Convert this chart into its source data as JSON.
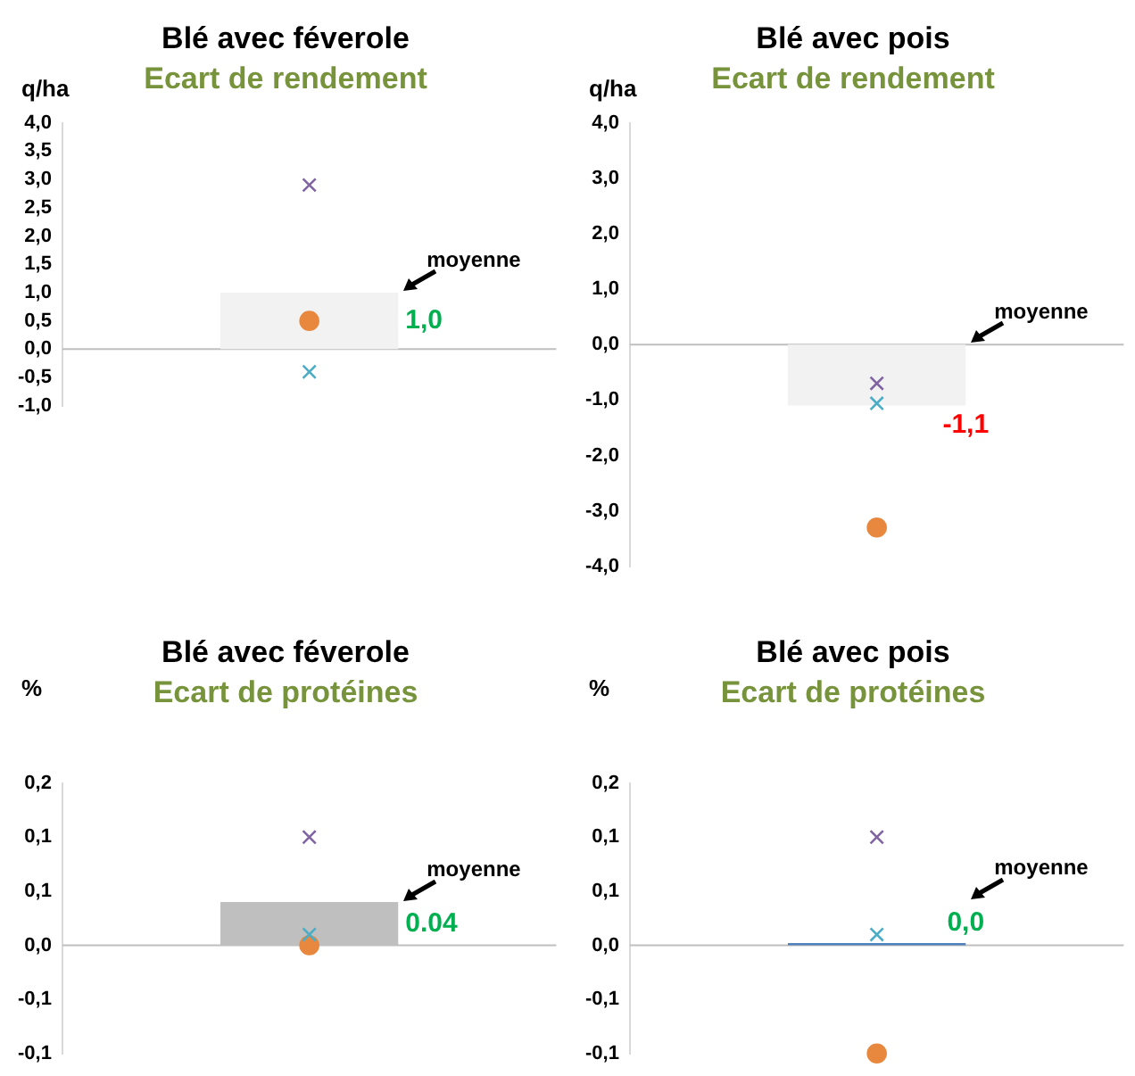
{
  "chart_data": [
    {
      "type": "bar",
      "title": "Blé avec féverole",
      "subtitle": "Ecart de rendement",
      "ylabel": "q/ha",
      "categories": [
        null
      ],
      "ylim": [
        -1,
        4
      ],
      "yticks": [
        {
          "value": -1,
          "label": "-1,0"
        },
        {
          "value": -0.5,
          "label": "-0,5"
        },
        {
          "value": 0,
          "label": "0,0"
        },
        {
          "value": 0.5,
          "label": "0,5"
        },
        {
          "value": 1,
          "label": "1,0"
        },
        {
          "value": 1.5,
          "label": "1,5"
        },
        {
          "value": 2,
          "label": "2,0"
        },
        {
          "value": 2.5,
          "label": "2,5"
        },
        {
          "value": 3,
          "label": "3,0"
        },
        {
          "value": 3.5,
          "label": "3,5"
        },
        {
          "value": 4,
          "label": "4,0"
        }
      ],
      "grid": false,
      "annotations": [
        "moyenne"
      ],
      "ref_lines": [
        {
          "axis": "y",
          "value": 0,
          "color": "#bfbfbf"
        }
      ],
      "series": [
        {
          "type": "bar",
          "color": "#f2f2f2",
          "values": [
            1.0
          ],
          "value_labels": [
            "1,0"
          ]
        },
        {
          "type": "scatter",
          "marker": "cross",
          "color": "#8064a2",
          "values": [
            2.9
          ]
        },
        {
          "type": "scatter",
          "marker": "cross",
          "color": "#4bacc6",
          "values": [
            -0.4
          ]
        },
        {
          "type": "scatter",
          "marker": "circle",
          "color": "#e8883f",
          "values": [
            0.5
          ]
        }
      ]
    },
    {
      "type": "bar",
      "title": "Blé avec pois",
      "subtitle": "Ecart de rendement",
      "ylabel": "q/ha",
      "categories": [
        null
      ],
      "ylim": [
        -4,
        4
      ],
      "yticks": [
        {
          "value": -4,
          "label": "-4,0"
        },
        {
          "value": -3,
          "label": "-3,0"
        },
        {
          "value": -2,
          "label": "-2,0"
        },
        {
          "value": -1,
          "label": "-1,0"
        },
        {
          "value": 0,
          "label": "0,0"
        },
        {
          "value": 1,
          "label": "1,0"
        },
        {
          "value": 2,
          "label": "2,0"
        },
        {
          "value": 3,
          "label": "3,0"
        },
        {
          "value": 4,
          "label": "4,0"
        }
      ],
      "grid": false,
      "annotations": [
        "moyenne"
      ],
      "ref_lines": [
        {
          "axis": "y",
          "value": 0,
          "color": "#bfbfbf"
        }
      ],
      "series": [
        {
          "type": "bar",
          "color": "#f2f2f2",
          "values": [
            -1.1
          ],
          "value_labels": [
            "-1,1"
          ]
        },
        {
          "type": "scatter",
          "marker": "cross",
          "color": "#8064a2",
          "values": [
            -0.7
          ]
        },
        {
          "type": "scatter",
          "marker": "cross",
          "color": "#4bacc6",
          "values": [
            -1.06
          ]
        },
        {
          "type": "scatter",
          "marker": "circle",
          "color": "#e8883f",
          "values": [
            -3.3
          ]
        }
      ]
    },
    {
      "type": "bar",
      "title": "Blé avec féverole",
      "subtitle": "Ecart de protéines",
      "ylabel": "%",
      "categories": [
        null
      ],
      "ylim": [
        -0.1,
        0.15
      ],
      "yticks": [
        {
          "value": -0.1,
          "label": "-0,1"
        },
        {
          "value": -0.05,
          "label": "-0,1"
        },
        {
          "value": 0,
          "label": "0,0"
        },
        {
          "value": 0.05,
          "label": "0,1"
        },
        {
          "value": 0.1,
          "label": "0,1"
        },
        {
          "value": 0.15,
          "label": "0,2"
        }
      ],
      "grid": false,
      "annotations": [
        "moyenne"
      ],
      "ref_lines": [
        {
          "axis": "y",
          "value": 0,
          "color": "#bfbfbf"
        }
      ],
      "series": [
        {
          "type": "bar",
          "color": "#bfbfbf",
          "values": [
            0.04
          ],
          "value_labels": [
            "0.04"
          ]
        },
        {
          "type": "scatter",
          "marker": "cross",
          "color": "#8064a2",
          "values": [
            0.1
          ]
        },
        {
          "type": "scatter",
          "marker": "cross",
          "color": "#4bacc6",
          "values": [
            0.01
          ]
        },
        {
          "type": "scatter",
          "marker": "circle",
          "color": "#e8883f",
          "values": [
            0
          ]
        }
      ]
    },
    {
      "type": "bar",
      "title": "Blé avec pois",
      "subtitle": "Ecart de protéines",
      "ylabel": "%",
      "categories": [
        null
      ],
      "ylim": [
        -0.1,
        0.15
      ],
      "yticks": [
        {
          "value": -0.1,
          "label": "-0,1"
        },
        {
          "value": -0.05,
          "label": "-0,1"
        },
        {
          "value": 0,
          "label": "0,0"
        },
        {
          "value": 0.05,
          "label": "0,1"
        },
        {
          "value": 0.1,
          "label": "0,1"
        },
        {
          "value": 0.15,
          "label": "0,2"
        }
      ],
      "grid": false,
      "annotations": [
        "moyenne"
      ],
      "ref_lines": [
        {
          "axis": "y",
          "value": 0,
          "color": "#bfbfbf"
        }
      ],
      "series": [
        {
          "type": "bar",
          "color": "#4f81bd",
          "values": [
            0.002
          ],
          "value_labels": [
            "0,0"
          ]
        },
        {
          "type": "scatter",
          "marker": "cross",
          "color": "#8064a2",
          "values": [
            0.1
          ]
        },
        {
          "type": "scatter",
          "marker": "cross",
          "color": "#4bacc6",
          "values": [
            0.01
          ]
        },
        {
          "type": "scatter",
          "marker": "circle",
          "color": "#e8883f",
          "values": [
            -0.1
          ]
        }
      ]
    }
  ]
}
